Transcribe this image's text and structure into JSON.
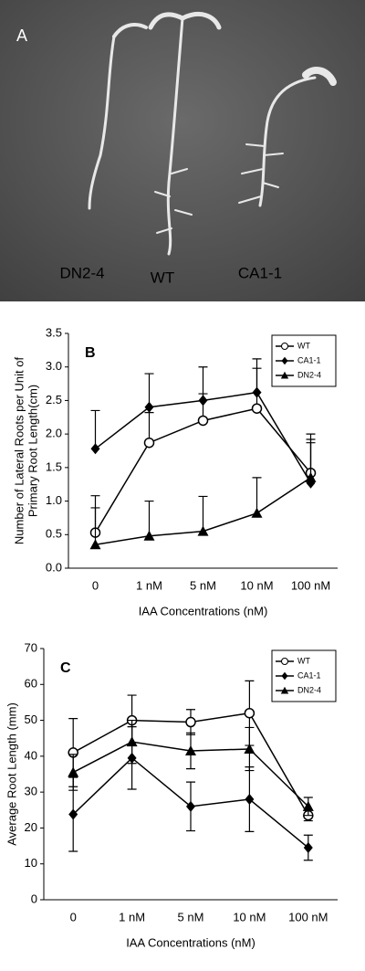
{
  "panel_a": {
    "label": "A",
    "seedlings": [
      "DN2-4",
      "WT",
      "CA1-1"
    ]
  },
  "chart_data": [
    {
      "type": "line",
      "panel": "B",
      "ylabel": [
        "Number of Lateral Roots per Unit of",
        "Primary Root Length(cm)"
      ],
      "xlabel": "IAA Concentrations (nM)",
      "categories": [
        "0",
        "1 nM",
        "5 nM",
        "10 nM",
        "100 nM"
      ],
      "ylim": [
        0,
        3.5
      ],
      "yticks": [
        {
          "value": 0,
          "label": "0.0"
        },
        0.5,
        {
          "value": 1,
          "label": "1.0"
        },
        1.5,
        {
          "value": 2,
          "label": "2.0"
        },
        2.5,
        {
          "value": 3,
          "label": "3.0"
        },
        3.5
      ],
      "legend": "top-right",
      "series": [
        {
          "name": "WT",
          "color": "#000000",
          "marker": "circle",
          "values": [
            0.53,
            1.87,
            2.2,
            2.38,
            1.42
          ],
          "errors": [
            0.37,
            0.45,
            0.4,
            0.6,
            0.58
          ]
        },
        {
          "name": "CA1-1",
          "color": "#000000",
          "marker": "diamond",
          "values": [
            1.78,
            2.4,
            2.5,
            2.62,
            1.27
          ],
          "errors": [
            0.57,
            0.5,
            0.5,
            0.5,
            0.6
          ]
        },
        {
          "name": "DN2-4",
          "color": "#000000",
          "marker": "triangle",
          "values": [
            0.35,
            0.48,
            0.55,
            0.82,
            1.35
          ],
          "errors": [
            0.73,
            0.52,
            0.52,
            0.53,
            0.57
          ]
        }
      ]
    },
    {
      "type": "line",
      "panel": "C",
      "ylabel": [
        "Average Root Length (mm)"
      ],
      "xlabel": "IAA Concentrations (nM)",
      "categories": [
        "0",
        "1 nM",
        "5 nM",
        "10 nM",
        "100 nM"
      ],
      "ylim": [
        0,
        70
      ],
      "yticks": [
        0,
        10,
        20,
        30,
        40,
        50,
        60,
        70
      ],
      "legend": "top-right",
      "series": [
        {
          "name": "WT",
          "color": "#000000",
          "marker": "circle",
          "values": [
            41,
            50,
            49.5,
            52,
            23.5
          ],
          "errors": [
            9.5,
            7,
            3.5,
            9,
            1.5
          ]
        },
        {
          "name": "CA1-1",
          "color": "#000000",
          "marker": "diamond",
          "values": [
            23.8,
            39.5,
            26,
            28,
            14.5
          ],
          "errors": [
            10.3,
            8.7,
            6.8,
            9,
            3.5
          ]
        },
        {
          "name": "DN2-4",
          "color": "#000000",
          "marker": "triangle",
          "values": [
            35.5,
            44,
            41.5,
            42,
            26
          ],
          "errors": [
            5,
            6,
            5,
            6,
            2.5
          ]
        }
      ]
    }
  ]
}
